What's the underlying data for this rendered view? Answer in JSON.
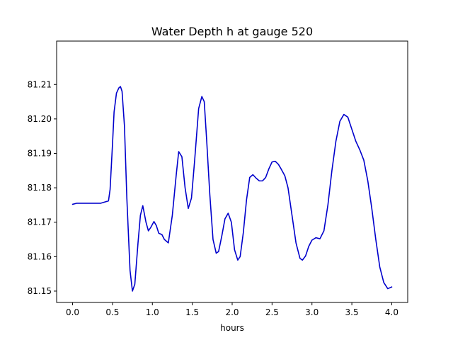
{
  "chart_data": {
    "type": "line",
    "title": "Water Depth h at gauge 520",
    "xlabel": "hours",
    "ylabel": "",
    "xlim": [
      -0.2,
      4.2
    ],
    "ylim": [
      81.1467,
      81.2226
    ],
    "grid": false,
    "xticks": [
      {
        "value": 0.0,
        "label": "0.0"
      },
      {
        "value": 0.5,
        "label": "0.5"
      },
      {
        "value": 1.0,
        "label": "1.0"
      },
      {
        "value": 1.5,
        "label": "1.5"
      },
      {
        "value": 2.0,
        "label": "2.0"
      },
      {
        "value": 2.5,
        "label": "2.5"
      },
      {
        "value": 3.0,
        "label": "3.0"
      },
      {
        "value": 3.5,
        "label": "3.5"
      },
      {
        "value": 4.0,
        "label": "4.0"
      }
    ],
    "yticks": [
      {
        "value": 81.15,
        "label": "81.15"
      },
      {
        "value": 81.16,
        "label": "81.16"
      },
      {
        "value": 81.17,
        "label": "81.17"
      },
      {
        "value": 81.18,
        "label": "81.18"
      },
      {
        "value": 81.19,
        "label": "81.19"
      },
      {
        "value": 81.2,
        "label": "81.20"
      },
      {
        "value": 81.21,
        "label": "81.21"
      }
    ],
    "series": [
      {
        "color": "#0000cc",
        "x": [
          0.0,
          0.05,
          0.2,
          0.35,
          0.45,
          0.47,
          0.5,
          0.52,
          0.55,
          0.58,
          0.6,
          0.62,
          0.65,
          0.68,
          0.72,
          0.75,
          0.78,
          0.82,
          0.85,
          0.88,
          0.92,
          0.95,
          0.98,
          1.02,
          1.05,
          1.08,
          1.12,
          1.15,
          1.2,
          1.25,
          1.3,
          1.33,
          1.37,
          1.41,
          1.45,
          1.49,
          1.53,
          1.58,
          1.62,
          1.65,
          1.68,
          1.72,
          1.76,
          1.8,
          1.83,
          1.87,
          1.91,
          1.95,
          1.99,
          2.03,
          2.07,
          2.1,
          2.14,
          2.18,
          2.22,
          2.26,
          2.3,
          2.34,
          2.38,
          2.42,
          2.46,
          2.5,
          2.54,
          2.58,
          2.62,
          2.66,
          2.7,
          2.75,
          2.8,
          2.85,
          2.88,
          2.92,
          2.96,
          3.0,
          3.05,
          3.1,
          3.15,
          3.2,
          3.25,
          3.3,
          3.35,
          3.4,
          3.45,
          3.5,
          3.55,
          3.6,
          3.65,
          3.7,
          3.75,
          3.8,
          3.85,
          3.9,
          3.95,
          4.0
        ],
        "y": [
          81.1752,
          81.1755,
          81.1755,
          81.1755,
          81.1762,
          81.1795,
          81.1925,
          81.202,
          81.2075,
          81.209,
          81.2094,
          81.208,
          81.198,
          81.177,
          81.156,
          81.15,
          81.152,
          81.164,
          81.172,
          81.1748,
          81.17,
          81.1675,
          81.1685,
          81.1702,
          81.169,
          81.1668,
          81.1664,
          81.165,
          81.164,
          81.172,
          81.184,
          81.1905,
          81.189,
          81.18,
          81.174,
          81.177,
          81.188,
          81.203,
          81.2065,
          81.205,
          81.194,
          81.178,
          81.165,
          81.161,
          81.1615,
          81.166,
          81.171,
          81.1726,
          81.17,
          81.162,
          81.159,
          81.16,
          81.167,
          81.1765,
          81.183,
          81.1838,
          81.1828,
          81.182,
          81.182,
          81.183,
          81.1855,
          81.1875,
          81.1877,
          81.1868,
          81.1852,
          81.1835,
          81.18,
          81.172,
          81.164,
          81.1595,
          81.159,
          81.1602,
          81.163,
          81.1648,
          81.1655,
          81.1652,
          81.1675,
          81.175,
          81.185,
          81.1935,
          81.1993,
          81.2013,
          81.2005,
          81.197,
          81.1935,
          81.191,
          81.188,
          81.182,
          81.174,
          81.165,
          81.157,
          81.1525,
          81.1507,
          81.1512
        ]
      }
    ]
  }
}
